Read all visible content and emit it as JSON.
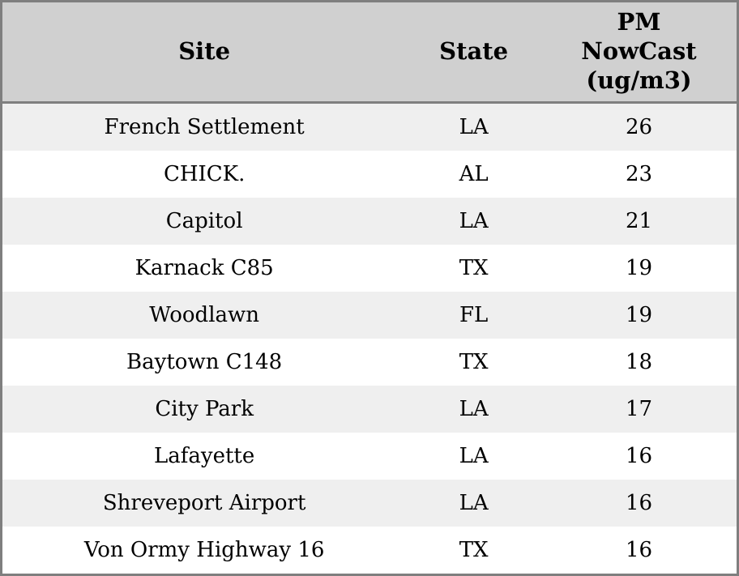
{
  "table": {
    "columns": [
      {
        "label": "Site"
      },
      {
        "label": "State"
      },
      {
        "label": "PM NowCast (ug/m3)"
      }
    ],
    "rows": [
      {
        "site": "French Settlement",
        "state": "LA",
        "pm": "26"
      },
      {
        "site": "CHICK.",
        "state": "AL",
        "pm": "23"
      },
      {
        "site": "Capitol",
        "state": "LA",
        "pm": "21"
      },
      {
        "site": "Karnack C85",
        "state": "TX",
        "pm": "19"
      },
      {
        "site": "Woodlawn",
        "state": "FL",
        "pm": "19"
      },
      {
        "site": "Baytown C148",
        "state": "TX",
        "pm": "18"
      },
      {
        "site": "City Park",
        "state": "LA",
        "pm": "17"
      },
      {
        "site": "Lafayette",
        "state": "LA",
        "pm": "16"
      },
      {
        "site": "Shreveport Airport",
        "state": "LA",
        "pm": "16"
      },
      {
        "site": "Von Ormy Highway 16",
        "state": "TX",
        "pm": "16"
      }
    ]
  },
  "colors": {
    "border": "#7f7f7f",
    "header_bg": "#d0d0d0",
    "row_alt_bg": "#efefef",
    "row_bg": "#ffffff",
    "text": "#000000"
  },
  "chart_data": {
    "type": "table",
    "title": "",
    "columns": [
      "Site",
      "State",
      "PM NowCast (ug/m3)"
    ],
    "rows": [
      [
        "French Settlement",
        "LA",
        26
      ],
      [
        "CHICK.",
        "AL",
        23
      ],
      [
        "Capitol",
        "LA",
        21
      ],
      [
        "Karnack C85",
        "TX",
        19
      ],
      [
        "Woodlawn",
        "FL",
        19
      ],
      [
        "Baytown C148",
        "TX",
        18
      ],
      [
        "City Park",
        "LA",
        17
      ],
      [
        "Lafayette",
        "LA",
        16
      ],
      [
        "Shreveport Airport",
        "LA",
        16
      ],
      [
        "Von Ormy Highway 16",
        "TX",
        16
      ]
    ],
    "layout_hints": {
      "header_style": "bold serif, gray background",
      "row_striping": "odd rows light gray, even rows white",
      "alignment": "all cells centered"
    }
  }
}
